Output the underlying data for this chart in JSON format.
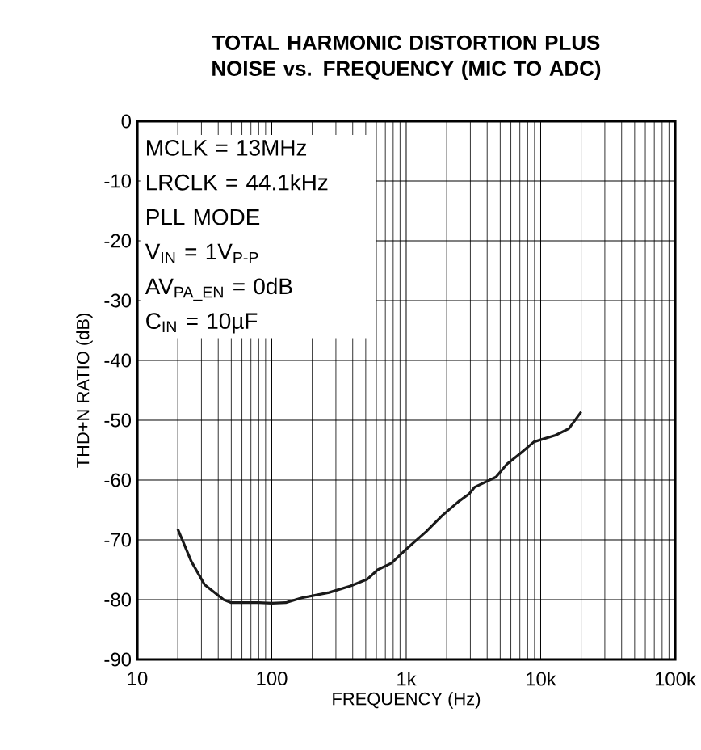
{
  "chart_data": {
    "type": "line",
    "title": "TOTAL HARMONIC DISTORTION PLUS NOISE vs. FREQUENCY (MIC TO ADC)",
    "xlabel": "FREQUENCY (Hz)",
    "ylabel": "THD+N RATIO (dB)",
    "annotations": [
      "MCLK = 13MHz",
      "LRCLK = 44.1kHz",
      "PLL MODE",
      "V$_{IN}$ = 1V$_{P-P}$",
      "AV$_{PA_EN}$ = 0dB",
      "C$_{IN}$ = 10µF"
    ],
    "log": "x",
    "grid": true,
    "marker": "none",
    "line_style": "solid",
    "xlim": [
      10,
      100000
    ],
    "ylim": [
      -90,
      0
    ],
    "xticks": [
      10,
      100,
      {
        "value": 1000,
        "label": "1k"
      },
      {
        "value": 10000,
        "label": "10k"
      },
      {
        "value": 100000,
        "label": "100k"
      }
    ],
    "yticks": [
      -90,
      -80,
      -70,
      -60,
      -50,
      -40,
      -30,
      -20,
      -10,
      0
    ],
    "series": [
      {
        "color": "#1a1a1a",
        "x": [
          20,
          25.2,
          31.7,
          43.9,
          50,
          80,
          100,
          127,
          167,
          267,
          386,
          512,
          613,
          776,
          973,
          1410,
          1860,
          2450,
          2940,
          3220,
          4650,
          5630,
          7090,
          8920,
          12900,
          16200,
          20000
        ],
        "values": [
          -68.2,
          -73.6,
          -77.5,
          -80.0,
          -80.5,
          -80.5,
          -80.6,
          -80.5,
          -79.7,
          -78.8,
          -77.7,
          -76.6,
          -75.0,
          -73.9,
          -71.8,
          -68.6,
          -65.9,
          -63.6,
          -62.3,
          -61.2,
          -59.5,
          -57.3,
          -55.5,
          -53.6,
          -52.5,
          -51.4,
          -48.6
        ]
      }
    ]
  }
}
